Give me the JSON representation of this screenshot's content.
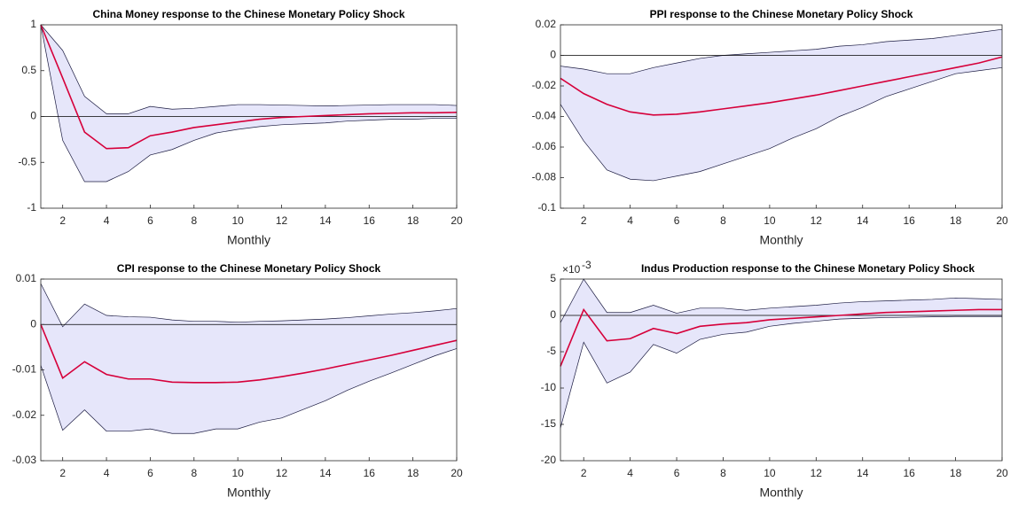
{
  "chart_data": [
    {
      "type": "line",
      "title": "China Money response to the Chinese Monetary Policy Shock",
      "xlabel": "Monthly",
      "x": [
        1,
        2,
        3,
        4,
        5,
        6,
        7,
        8,
        9,
        10,
        11,
        12,
        13,
        14,
        15,
        16,
        17,
        18,
        19,
        20
      ],
      "values": [
        1,
        0.42,
        -0.17,
        -0.35,
        -0.34,
        -0.21,
        -0.17,
        -0.12,
        -0.09,
        -0.06,
        -0.03,
        -0.01,
        0,
        0.01,
        0.02,
        0.03,
        0.035,
        0.04,
        0.04,
        0.045
      ],
      "band_upper": [
        1,
        0.72,
        0.22,
        0.03,
        0.03,
        0.11,
        0.08,
        0.09,
        0.11,
        0.13,
        0.13,
        0.125,
        0.12,
        0.115,
        0.12,
        0.125,
        0.13,
        0.13,
        0.13,
        0.12
      ],
      "band_lower": [
        1,
        -0.26,
        -0.71,
        -0.71,
        -0.6,
        -0.42,
        -0.36,
        -0.26,
        -0.18,
        -0.14,
        -0.11,
        -0.09,
        -0.08,
        -0.07,
        -0.05,
        -0.04,
        -0.03,
        -0.03,
        -0.02,
        -0.02
      ],
      "color": "#d6003a",
      "band_color": "#e6e6fa",
      "hline": 0,
      "xlim": [
        1,
        20
      ],
      "xticks": [
        2,
        4,
        6,
        8,
        10,
        12,
        14,
        16,
        18,
        20
      ],
      "ylim": [
        -1,
        1
      ],
      "yticks": [
        -1,
        -0.5,
        0,
        0.5,
        1
      ]
    },
    {
      "type": "line",
      "title": "PPI response to the Chinese Monetary Policy Shock",
      "xlabel": "Monthly",
      "x": [
        1,
        2,
        3,
        4,
        5,
        6,
        7,
        8,
        9,
        10,
        11,
        12,
        13,
        14,
        15,
        16,
        17,
        18,
        19,
        20
      ],
      "values": [
        -0.015,
        -0.025,
        -0.032,
        -0.037,
        -0.039,
        -0.0385,
        -0.037,
        -0.035,
        -0.033,
        -0.031,
        -0.0285,
        -0.026,
        -0.023,
        -0.02,
        -0.017,
        -0.014,
        -0.011,
        -0.008,
        -0.005,
        -0.001
      ],
      "band_upper": [
        -0.007,
        -0.009,
        -0.012,
        -0.012,
        -0.008,
        -0.005,
        -0.002,
        0,
        0.001,
        0.002,
        0.003,
        0.004,
        0.006,
        0.007,
        0.009,
        0.01,
        0.011,
        0.013,
        0.015,
        0.017
      ],
      "band_lower": [
        -0.032,
        -0.056,
        -0.075,
        -0.081,
        -0.082,
        -0.079,
        -0.076,
        -0.071,
        -0.066,
        -0.061,
        -0.054,
        -0.048,
        -0.04,
        -0.034,
        -0.027,
        -0.022,
        -0.017,
        -0.012,
        -0.01,
        -0.008
      ],
      "color": "#d6003a",
      "band_color": "#e6e6fa",
      "hline": 0,
      "xlim": [
        1,
        20
      ],
      "xticks": [
        2,
        4,
        6,
        8,
        10,
        12,
        14,
        16,
        18,
        20
      ],
      "ylim": [
        -0.1,
        0.02
      ],
      "yticks": [
        -0.1,
        -0.08,
        -0.06,
        -0.04,
        -0.02,
        0,
        0.02
      ]
    },
    {
      "type": "line",
      "title": "CPI response to the Chinese Monetary Policy Shock",
      "xlabel": "Monthly",
      "x": [
        1,
        2,
        3,
        4,
        5,
        6,
        7,
        8,
        9,
        10,
        11,
        12,
        13,
        14,
        15,
        16,
        17,
        18,
        19,
        20
      ],
      "values": [
        0,
        -0.0118,
        -0.0082,
        -0.011,
        -0.012,
        -0.012,
        -0.0127,
        -0.0128,
        -0.0128,
        -0.0127,
        -0.0122,
        -0.0115,
        -0.0107,
        -0.0098,
        -0.0088,
        -0.0078,
        -0.0068,
        -0.0057,
        -0.0046,
        -0.0035
      ],
      "band_upper": [
        0.009,
        -0.0005,
        0.0045,
        0.002,
        0.0017,
        0.0016,
        0.001,
        0.0007,
        0.0007,
        0.0005,
        0.0007,
        0.0008,
        0.001,
        0.0012,
        0.0015,
        0.0019,
        0.0023,
        0.0026,
        0.003,
        0.0035
      ],
      "band_lower": [
        -0.009,
        -0.0233,
        -0.0188,
        -0.0235,
        -0.0235,
        -0.023,
        -0.024,
        -0.024,
        -0.023,
        -0.023,
        -0.0215,
        -0.0206,
        -0.0187,
        -0.0168,
        -0.0145,
        -0.0125,
        -0.0107,
        -0.0088,
        -0.0069,
        -0.0053
      ],
      "color": "#d6003a",
      "band_color": "#e6e6fa",
      "hline": 0,
      "xlim": [
        1,
        20
      ],
      "xticks": [
        2,
        4,
        6,
        8,
        10,
        12,
        14,
        16,
        18,
        20
      ],
      "ylim": [
        -0.03,
        0.01
      ],
      "yticks": [
        -0.03,
        -0.02,
        -0.01,
        0,
        0.01
      ]
    },
    {
      "type": "line",
      "title": "Indus Production response to the Chinese Monetary Policy Shock",
      "xlabel": "Monthly",
      "scale_label": {
        "base": "×10",
        "exponent": "-3"
      },
      "x": [
        1,
        2,
        3,
        4,
        5,
        6,
        7,
        8,
        9,
        10,
        11,
        12,
        13,
        14,
        15,
        16,
        17,
        18,
        19,
        20
      ],
      "values": [
        -7,
        0.8,
        -3.5,
        -3.2,
        -1.8,
        -2.5,
        -1.5,
        -1.2,
        -1,
        -0.6,
        -0.4,
        -0.2,
        0,
        0.2,
        0.4,
        0.5,
        0.6,
        0.7,
        0.8,
        0.8
      ],
      "band_upper": [
        -1,
        5,
        0.4,
        0.4,
        1.4,
        0.3,
        1,
        1,
        0.7,
        1,
        1.2,
        1.4,
        1.7,
        1.9,
        2,
        2.1,
        2.2,
        2.4,
        2.3,
        2.2
      ],
      "band_lower": [
        -15.5,
        -3.7,
        -9.3,
        -7.8,
        -4,
        -5.2,
        -3.3,
        -2.6,
        -2.3,
        -1.5,
        -1.1,
        -0.8,
        -0.5,
        -0.4,
        -0.3,
        -0.25,
        -0.2,
        -0.15,
        -0.15,
        -0.15
      ],
      "color": "#d6003a",
      "band_color": "#e6e6fa",
      "hline": 0,
      "xlim": [
        1,
        20
      ],
      "xticks": [
        2,
        4,
        6,
        8,
        10,
        12,
        14,
        16,
        18,
        20
      ],
      "ylim": [
        -20,
        5
      ],
      "yticks": [
        -20,
        -15,
        -10,
        -5,
        0,
        5
      ]
    }
  ]
}
